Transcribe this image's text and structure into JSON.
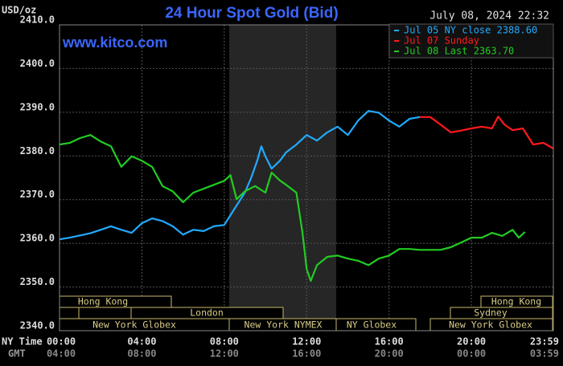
{
  "chart_data": {
    "type": "line",
    "title": "24 Hour Spot Gold (Bid)",
    "unit_label": "USD/oz",
    "timestamp": "July 08, 2024 22:32",
    "watermark": "www.kitco.com",
    "x_row_labels": [
      "NY Time",
      "GMT"
    ],
    "xlim": [
      0,
      23.98
    ],
    "ylim": [
      2340,
      2410
    ],
    "xticks": [
      {
        "value": 0,
        "label": "00:00"
      },
      {
        "value": 4,
        "label": "04:00"
      },
      {
        "value": 8,
        "label": "08:00"
      },
      {
        "value": 12,
        "label": "12:00"
      },
      {
        "value": 16,
        "label": "16:00"
      },
      {
        "value": 20,
        "label": "20:00"
      },
      {
        "value": 23.98,
        "label": "23:59"
      }
    ],
    "gmt_labels": [
      "04:00",
      "08:00",
      "12:00",
      "16:00",
      "20:00",
      "00:00",
      "03:59"
    ],
    "yticks": [
      {
        "value": 2340,
        "label": "2340.0"
      },
      {
        "value": 2350,
        "label": "2350.0"
      },
      {
        "value": 2360,
        "label": "2360.0"
      },
      {
        "value": 2370,
        "label": "2370.0"
      },
      {
        "value": 2380,
        "label": "2380.0"
      },
      {
        "value": 2390,
        "label": "2390.0"
      },
      {
        "value": 2400,
        "label": "2400.0"
      },
      {
        "value": 2410,
        "label": "2410.0"
      }
    ],
    "grid": true,
    "legend": "upper right",
    "sessions": [
      "Hong Kong",
      "London",
      "New York Globex",
      "New York NYMEX",
      "NY Globex",
      "Hong Kong",
      "Sydney",
      "New York Globex"
    ],
    "series": [
      {
        "name": "Jul 05 NY close 2388.60",
        "color": "#22aaff",
        "x": [
          0,
          0.5,
          1,
          1.5,
          2,
          2.5,
          3,
          3.5,
          4,
          4.5,
          5,
          5.5,
          6,
          6.5,
          7,
          7.5,
          8,
          8.5,
          9,
          9.3,
          9.6,
          9.8,
          10,
          10.3,
          10.7,
          11,
          11.5,
          12,
          12.5,
          13,
          13.5,
          14,
          14.5,
          15,
          15.5,
          16,
          16.5,
          17,
          17.5
        ],
        "values": [
          2360.9,
          2361.3,
          2361.8,
          2362.3,
          2363.1,
          2363.9,
          2363.1,
          2362.4,
          2364.6,
          2365.7,
          2365.1,
          2363.9,
          2362.0,
          2363.1,
          2362.8,
          2363.9,
          2364.2,
          2367.9,
          2371.6,
          2374.9,
          2378.9,
          2382.2,
          2379.9,
          2377.1,
          2378.9,
          2380.8,
          2382.6,
          2384.8,
          2383.5,
          2385.4,
          2386.7,
          2384.8,
          2388.1,
          2390.3,
          2389.9,
          2388.1,
          2386.7,
          2388.5,
          2388.9
        ]
      },
      {
        "name": "Jul 07 Sunday",
        "color": "#ff1a1a",
        "x": [
          17.5,
          18,
          18.5,
          19,
          19.5,
          20,
          20.5,
          21,
          21.3,
          21.6,
          22,
          22.5,
          23,
          23.5,
          23.98
        ],
        "values": [
          2388.9,
          2388.9,
          2387.2,
          2385.4,
          2385.8,
          2386.3,
          2386.7,
          2386.3,
          2389.0,
          2387.2,
          2385.9,
          2386.3,
          2382.6,
          2383.0,
          2381.7
        ]
      },
      {
        "name": "Jul 08 Last 2363.70",
        "color": "#22cc22",
        "x": [
          0,
          0.5,
          1,
          1.5,
          2,
          2.5,
          3,
          3.5,
          4,
          4.5,
          5,
          5.5,
          6,
          6.5,
          7,
          7.5,
          8,
          8.3,
          8.6,
          9,
          9.5,
          10,
          10.3,
          10.7,
          11,
          11.5,
          11.8,
          12,
          12.2,
          12.5,
          13,
          13.5,
          14,
          14.5,
          15,
          15.5,
          16,
          16.5,
          17,
          17.5,
          18,
          18.5,
          19,
          19.5,
          20,
          20.5,
          21,
          21.5,
          22,
          22.3,
          22.6
        ],
        "values": [
          2382.6,
          2383.0,
          2384.1,
          2384.8,
          2383.3,
          2382.2,
          2377.5,
          2379.9,
          2378.9,
          2377.5,
          2373.1,
          2371.9,
          2369.4,
          2371.6,
          2372.5,
          2373.4,
          2374.3,
          2375.6,
          2370.1,
          2371.9,
          2373.1,
          2371.6,
          2376.2,
          2374.4,
          2373.4,
          2371.6,
          2362.4,
          2354.1,
          2351.4,
          2355.0,
          2356.9,
          2357.2,
          2356.5,
          2356.0,
          2355.0,
          2356.5,
          2357.2,
          2358.7,
          2358.7,
          2358.5,
          2358.5,
          2358.5,
          2359.1,
          2360.2,
          2361.3,
          2361.3,
          2362.4,
          2361.7,
          2363.1,
          2361.3,
          2362.6
        ]
      }
    ]
  }
}
